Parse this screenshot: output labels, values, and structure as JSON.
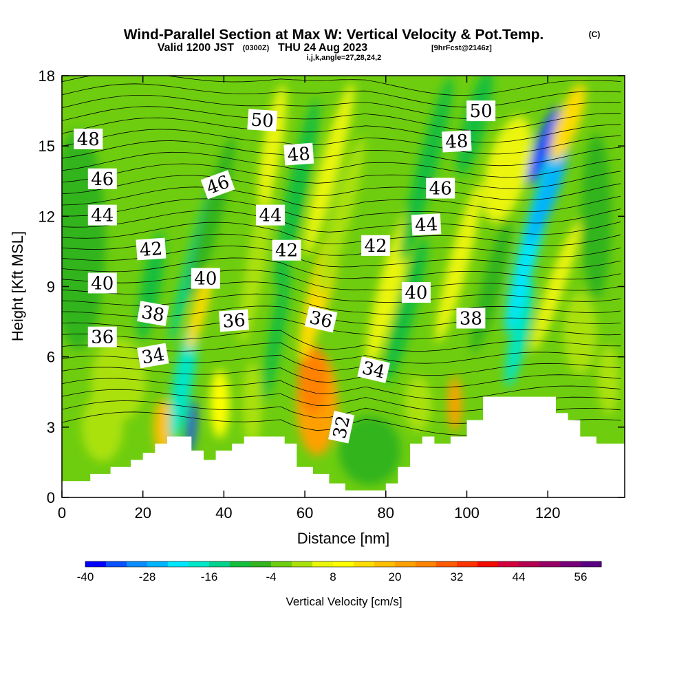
{
  "title": {
    "main": "Wind-Parallel Section at Max W: Vertical Velocity & Pot.Temp.",
    "copyright": "(C)",
    "valid_prefix": "Valid 1200 JST",
    "valid_utc": "(0300Z)",
    "valid_date": "THU 24 Aug 2023",
    "forecast": "[9hrFcst@2146z]",
    "ijk": "i,j,k,angle=27,28,24,2"
  },
  "chart_data": {
    "type": "heatmap",
    "xlabel": "Distance [nm]",
    "ylabel": "Height [Kft MSL]",
    "xlim": [
      0,
      139
    ],
    "ylim": [
      0,
      18
    ],
    "x_ticks": [
      "0",
      "20",
      "40",
      "60",
      "80",
      "100",
      "120"
    ],
    "y_ticks": [
      "0",
      "3",
      "6",
      "9",
      "12",
      "15",
      "18"
    ],
    "colorbar": {
      "label": "Vertical Velocity [cm/s]",
      "min": -40,
      "max": 60,
      "step": 4,
      "tick_labels": [
        "-40",
        "-28",
        "-16",
        "-4",
        "8",
        "20",
        "32",
        "44",
        "56"
      ],
      "colors": [
        "#0000ff",
        "#0a50ff",
        "#0a8cff",
        "#00b4ff",
        "#00e6ff",
        "#00e6c8",
        "#00d28c",
        "#14be3c",
        "#32b41e",
        "#6ecd0f",
        "#aae10a",
        "#ebf50a",
        "#ffff00",
        "#ffdc00",
        "#ffbe00",
        "#ffa000",
        "#ff8200",
        "#ff5a00",
        "#ff3200",
        "#f00a00",
        "#d2003c",
        "#b40050",
        "#960064",
        "#780078",
        "#5a0082"
      ]
    },
    "contour_labels": [
      {
        "text": "50",
        "x": 49.5,
        "y": 16.1,
        "angle": 4
      },
      {
        "text": "50",
        "x": 103.5,
        "y": 16.5,
        "angle": 0
      },
      {
        "text": "48",
        "x": 6.5,
        "y": 15.3,
        "angle": 0
      },
      {
        "text": "48",
        "x": 58.5,
        "y": 14.65,
        "angle": -4
      },
      {
        "text": "48",
        "x": 97.5,
        "y": 15.2,
        "angle": -3
      },
      {
        "text": "46",
        "x": 10,
        "y": 13.6,
        "angle": 0
      },
      {
        "text": "46",
        "x": 38.5,
        "y": 13.35,
        "angle": -20
      },
      {
        "text": "46",
        "x": 93.5,
        "y": 13.2,
        "angle": 0
      },
      {
        "text": "44",
        "x": 10,
        "y": 12.05,
        "angle": 0
      },
      {
        "text": "44",
        "x": 51.5,
        "y": 12.05,
        "angle": 0
      },
      {
        "text": "44",
        "x": 90,
        "y": 11.65,
        "angle": -3
      },
      {
        "text": "42",
        "x": 22,
        "y": 10.6,
        "angle": -4
      },
      {
        "text": "42",
        "x": 55.5,
        "y": 10.55,
        "angle": 0
      },
      {
        "text": "42",
        "x": 77.5,
        "y": 10.75,
        "angle": 0
      },
      {
        "text": "40",
        "x": 10,
        "y": 9.15,
        "angle": 0
      },
      {
        "text": "40",
        "x": 35.5,
        "y": 9.35,
        "angle": 0
      },
      {
        "text": "40",
        "x": 87.5,
        "y": 8.75,
        "angle": 0
      },
      {
        "text": "38",
        "x": 22.5,
        "y": 7.85,
        "angle": 10
      },
      {
        "text": "38",
        "x": 101,
        "y": 7.65,
        "angle": 0
      },
      {
        "text": "36",
        "x": 10,
        "y": 6.85,
        "angle": 0
      },
      {
        "text": "36",
        "x": 42.5,
        "y": 7.55,
        "angle": -4
      },
      {
        "text": "36",
        "x": 64,
        "y": 7.6,
        "angle": 13
      },
      {
        "text": "34",
        "x": 22.5,
        "y": 6.05,
        "angle": -10
      },
      {
        "text": "34",
        "x": 77,
        "y": 5.45,
        "angle": 13
      },
      {
        "text": "32",
        "x": 69,
        "y": 3.0,
        "angle": -78
      }
    ],
    "terrain_profile": [
      [
        0,
        0.7
      ],
      [
        3,
        0.7
      ],
      [
        3,
        0.7
      ],
      [
        7,
        0.7
      ],
      [
        7,
        1.0
      ],
      [
        12,
        1.0
      ],
      [
        12,
        1.3
      ],
      [
        17,
        1.3
      ],
      [
        17,
        1.6
      ],
      [
        20,
        1.6
      ],
      [
        20,
        1.9
      ],
      [
        23,
        1.9
      ],
      [
        23,
        2.3
      ],
      [
        26,
        2.3
      ],
      [
        26,
        2.6
      ],
      [
        32,
        2.6
      ],
      [
        32,
        2.0
      ],
      [
        35,
        2.0
      ],
      [
        35,
        1.6
      ],
      [
        38,
        1.6
      ],
      [
        38,
        2.0
      ],
      [
        42,
        2.0
      ],
      [
        42,
        2.3
      ],
      [
        45,
        2.3
      ],
      [
        45,
        2.6
      ],
      [
        52,
        2.6
      ],
      [
        52,
        2.6
      ],
      [
        55,
        2.6
      ],
      [
        55,
        2.3
      ],
      [
        58,
        2.3
      ],
      [
        58,
        1.3
      ],
      [
        62,
        1.3
      ],
      [
        62,
        1.0
      ],
      [
        66,
        1.0
      ],
      [
        66,
        0.6
      ],
      [
        70,
        0.6
      ],
      [
        70,
        0.3
      ],
      [
        80,
        0.3
      ],
      [
        80,
        0.6
      ],
      [
        83,
        0.6
      ],
      [
        83,
        1.3
      ],
      [
        86,
        1.3
      ],
      [
        86,
        2.3
      ],
      [
        89,
        2.3
      ],
      [
        89,
        2.6
      ],
      [
        92,
        2.6
      ],
      [
        92,
        2.3
      ],
      [
        96,
        2.3
      ],
      [
        96,
        2.6
      ],
      [
        100,
        2.6
      ],
      [
        100,
        3.3
      ],
      [
        104,
        3.3
      ],
      [
        104,
        4.3
      ],
      [
        115,
        4.3
      ],
      [
        115,
        4.3
      ],
      [
        122,
        4.3
      ],
      [
        122,
        3.6
      ],
      [
        125,
        3.6
      ],
      [
        125,
        3.3
      ],
      [
        128,
        3.3
      ],
      [
        128,
        2.6
      ],
      [
        132,
        2.6
      ],
      [
        132,
        2.3
      ],
      [
        139,
        2.3
      ]
    ]
  }
}
